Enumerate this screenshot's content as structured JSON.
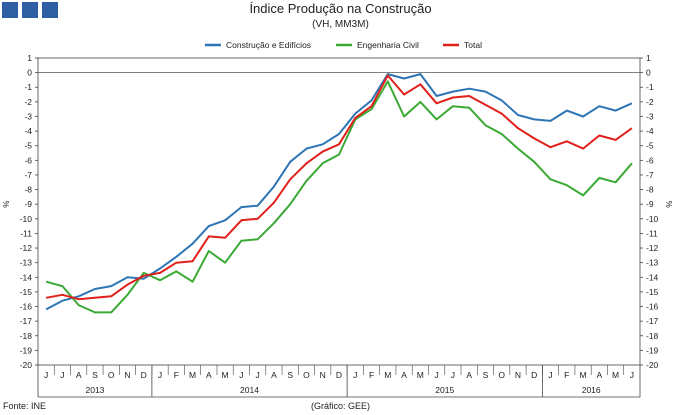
{
  "header": {
    "title": "Índice Produção na Construção",
    "subtitle": "(VH, MM3M)"
  },
  "footer": {
    "source": "Fonte: INE",
    "credit": "(Gráfico: GEE)"
  },
  "colors": {
    "logo": "#2e5fa3",
    "series": [
      "#2e75b6",
      "#3aaa35",
      "#e0201b"
    ]
  },
  "chart_data": {
    "type": "line",
    "ylabel": "%",
    "ylim": [
      -20,
      1
    ],
    "yticks": [
      1,
      0,
      -1,
      -2,
      -3,
      -4,
      -5,
      -6,
      -7,
      -8,
      -9,
      -10,
      -11,
      -12,
      -13,
      -14,
      -15,
      -16,
      -17,
      -18,
      -19,
      -20
    ],
    "categories": [
      "J",
      "J",
      "A",
      "S",
      "O",
      "N",
      "D",
      "J",
      "F",
      "M",
      "A",
      "M",
      "J",
      "J",
      "A",
      "S",
      "O",
      "N",
      "D",
      "J",
      "F",
      "M",
      "A",
      "M",
      "J",
      "J",
      "A",
      "S",
      "O",
      "N",
      "D",
      "J",
      "F",
      "M",
      "A",
      "M",
      "J"
    ],
    "year_groups": [
      {
        "label": "2013",
        "start": 0,
        "end": 6
      },
      {
        "label": "2014",
        "start": 7,
        "end": 18
      },
      {
        "label": "2015",
        "start": 19,
        "end": 30
      },
      {
        "label": "2016",
        "start": 31,
        "end": 36
      }
    ],
    "series": [
      {
        "name": "Construção e Edifícios",
        "color": "#2e75b6",
        "values": [
          -16.2,
          -15.6,
          -15.3,
          -14.8,
          -14.6,
          -14.0,
          -14.1,
          -13.4,
          -12.6,
          -11.7,
          -10.5,
          -10.1,
          -9.2,
          -9.1,
          -7.8,
          -6.1,
          -5.2,
          -4.9,
          -4.2,
          -2.8,
          -1.9,
          -0.1,
          -0.4,
          -0.1,
          -1.6,
          -1.3,
          -1.1,
          -1.3,
          -1.9,
          -2.9,
          -3.2,
          -3.3,
          -2.6,
          -3.0,
          -2.3,
          -2.6,
          -2.1
        ]
      },
      {
        "name": "Engenharia Civil",
        "color": "#3aaa35",
        "values": [
          -14.3,
          -14.6,
          -15.9,
          -16.4,
          -16.4,
          -15.2,
          -13.7,
          -14.2,
          -13.6,
          -14.3,
          -12.2,
          -13.0,
          -11.5,
          -11.4,
          -10.3,
          -9.0,
          -7.4,
          -6.2,
          -5.6,
          -3.2,
          -2.5,
          -0.6,
          -3.0,
          -2.0,
          -3.2,
          -2.3,
          -2.4,
          -3.6,
          -4.2,
          -5.2,
          -6.1,
          -7.3,
          -7.7,
          -8.4,
          -7.2,
          -7.5,
          -6.2
        ]
      },
      {
        "name": "Total",
        "color": "#e0201b",
        "values": [
          -15.4,
          -15.2,
          -15.5,
          -15.4,
          -15.3,
          -14.5,
          -13.9,
          -13.7,
          -13.0,
          -12.9,
          -11.2,
          -11.3,
          -10.1,
          -10.0,
          -8.9,
          -7.3,
          -6.2,
          -5.4,
          -4.9,
          -3.1,
          -2.3,
          -0.2,
          -1.5,
          -0.8,
          -2.1,
          -1.7,
          -1.6,
          -2.2,
          -2.8,
          -3.8,
          -4.5,
          -5.1,
          -4.7,
          -5.2,
          -4.3,
          -4.6,
          -3.8
        ]
      }
    ]
  }
}
